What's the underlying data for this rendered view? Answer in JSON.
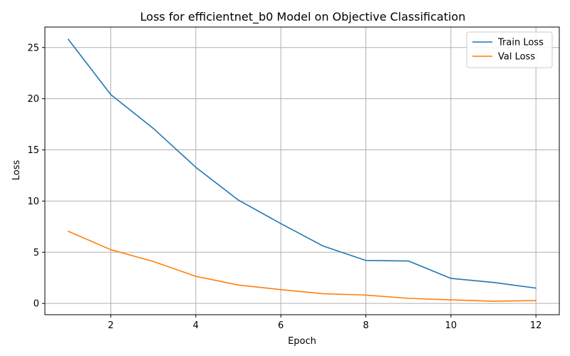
{
  "chart_data": {
    "type": "line",
    "title": "Loss for efficientnet_b0 Model on Objective Classification",
    "xlabel": "Epoch",
    "ylabel": "Loss",
    "x": [
      1,
      2,
      3,
      4,
      5,
      6,
      7,
      8,
      9,
      10,
      11,
      12
    ],
    "xlim": [
      0.45,
      12.55
    ],
    "ylim": [
      -1.1,
      27.0
    ],
    "xticks": [
      2,
      4,
      6,
      8,
      10,
      12
    ],
    "yticks": [
      0,
      5,
      10,
      15,
      20,
      25
    ],
    "grid": true,
    "legend_position": "top-right",
    "series": [
      {
        "name": "Train Loss",
        "color": "#1f77b4",
        "values": [
          25.8,
          20.4,
          17.1,
          13.3,
          10.1,
          7.8,
          5.6,
          4.2,
          4.15,
          2.45,
          2.05,
          1.5
        ]
      },
      {
        "name": "Val Loss",
        "color": "#ff7f0e",
        "values": [
          7.05,
          5.25,
          4.1,
          2.65,
          1.8,
          1.35,
          0.95,
          0.82,
          0.5,
          0.35,
          0.22,
          0.28
        ]
      }
    ]
  }
}
